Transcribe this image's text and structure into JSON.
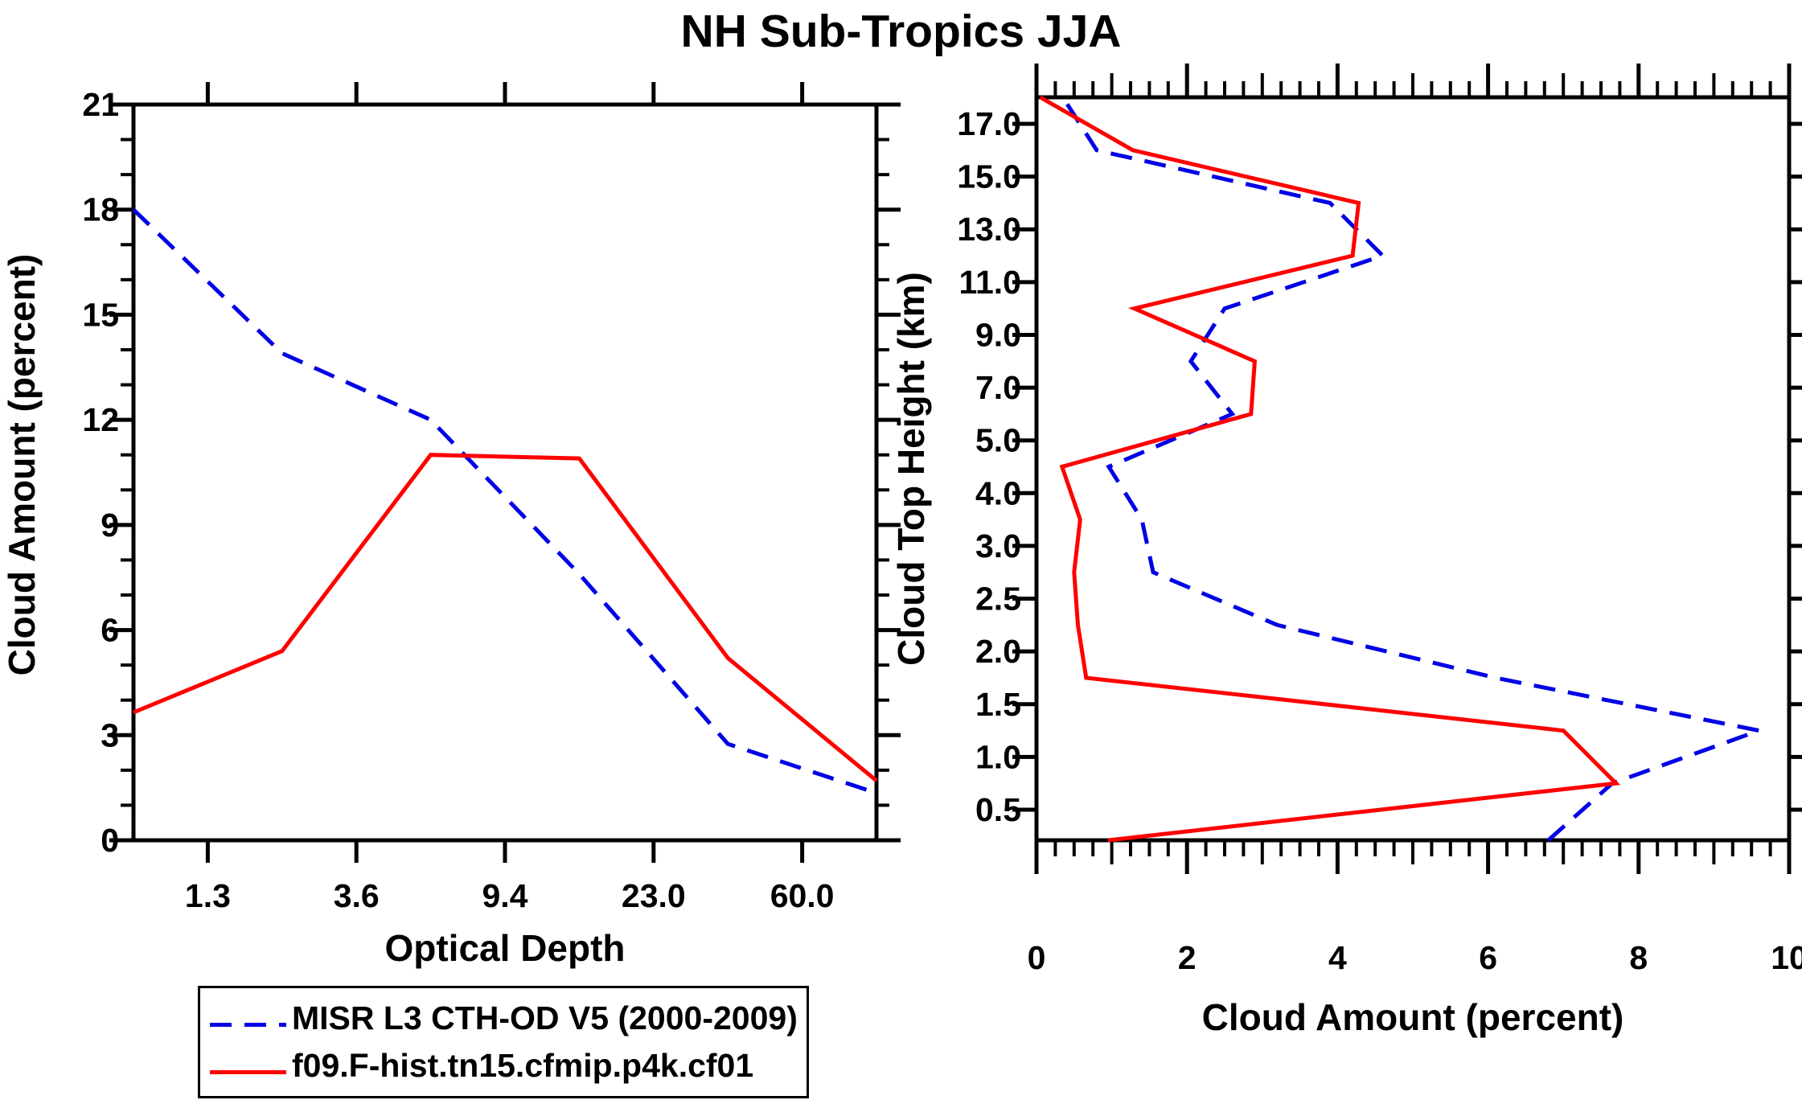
{
  "title": "NH Sub-Tropics JJA",
  "colors": {
    "misr_blue": "#0000e6",
    "model_red": "#ff0000",
    "axis_black": "#000000",
    "background": "#ffffff"
  },
  "legend": {
    "entries": [
      {
        "label": "MISR L3 CTH-OD V5 (2000-2009)",
        "line_style": "dashed",
        "color_key": "misr_blue"
      },
      {
        "label": "f09.F-hist.tn15.cfmip.p4k.cf01",
        "line_style": "solid",
        "color_key": "model_red"
      }
    ]
  },
  "chart_data": [
    {
      "id": "optical-depth-panel",
      "type": "line",
      "xlabel": "Optical Depth",
      "ylabel": "Cloud Amount (percent)",
      "x_axis": {
        "kind": "categorical-bin-boundaries",
        "tick_labels": [
          "1.3",
          "3.6",
          "9.4",
          "23.0",
          "60.0"
        ],
        "note": "optical-depth bin boundaries; series sampled at bin centers, first/last points at plot edges"
      },
      "y_axis": {
        "range": [
          0,
          21
        ],
        "major_tick_labels": [
          "0",
          "3",
          "6",
          "9",
          "12",
          "15",
          "18",
          "21"
        ],
        "minor_step": 1
      },
      "bins": [
        "<1.3",
        "1.3-3.6",
        "3.6-9.4",
        "9.4-23.0",
        "23.0-60.0",
        ">60.0"
      ],
      "series": [
        {
          "name": "MISR L3 CTH-OD V5 (2000-2009)",
          "style": "dashed",
          "color_key": "misr_blue",
          "values": [
            18.0,
            13.9,
            12.0,
            7.6,
            2.75,
            1.35
          ]
        },
        {
          "name": "f09.F-hist.tn15.cfmip.p4k.cf01",
          "style": "solid",
          "color_key": "model_red",
          "values": [
            3.65,
            5.4,
            11.0,
            10.9,
            5.2,
            1.7
          ]
        }
      ],
      "grid": false,
      "legend_position": "below-left"
    },
    {
      "id": "cloud-top-height-panel",
      "type": "line",
      "xlabel": "Cloud Amount (percent)",
      "ylabel": "Cloud Top Height (km)",
      "x_axis": {
        "range": [
          0,
          10
        ],
        "major_tick_labels": [
          "0",
          "2",
          "4",
          "6",
          "8",
          "10"
        ],
        "minor_step": 0.25
      },
      "y_axis": {
        "kind": "categorical-bin-boundaries",
        "tick_labels": [
          "0.5",
          "1.0",
          "1.5",
          "2.0",
          "2.5",
          "3.0",
          "4.0",
          "5.0",
          "7.0",
          "9.0",
          "11.0",
          "13.0",
          "15.0",
          "17.0"
        ],
        "note": "cloud-top-height bin boundaries (km); series sampled at bin centers, lowest/highest points at plot edges"
      },
      "bins_km": [
        "<0.5",
        "0.5-1.0",
        "1.0-1.5",
        "1.5-2.0",
        "2.0-2.5",
        "2.5-3.0",
        "3.0-4.0",
        "4.0-5.0",
        "5.0-7.0",
        "7.0-9.0",
        "9.0-11.0",
        "11.0-13.0",
        "13.0-15.0",
        "15.0-17.0",
        ">17.0"
      ],
      "series": [
        {
          "name": "MISR L3 CTH-OD V5 (2000-2009)",
          "style": "dashed",
          "color_key": "misr_blue",
          "values": [
            6.8,
            7.65,
            9.6,
            6.1,
            3.2,
            1.55,
            1.4,
            0.96,
            2.6,
            2.05,
            2.5,
            4.6,
            3.9,
            0.8,
            0.35
          ]
        },
        {
          "name": "f09.F-hist.tn15.cfmip.p4k.cf01",
          "style": "solid",
          "color_key": "model_red",
          "values": [
            0.95,
            7.7,
            7.0,
            0.66,
            0.55,
            0.5,
            0.58,
            0.34,
            2.85,
            2.9,
            1.3,
            4.2,
            4.28,
            1.28,
            0.05
          ]
        }
      ],
      "grid": false
    }
  ]
}
